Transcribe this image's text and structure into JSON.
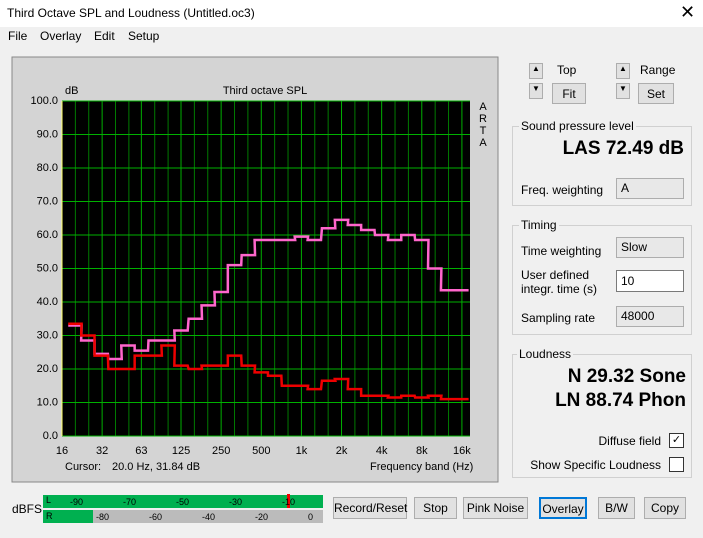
{
  "window": {
    "title": "Third Octave SPL and Loudness (Untitled.oc3)",
    "menu": [
      "File",
      "Overlay",
      "Edit",
      "Setup"
    ]
  },
  "chart_data": {
    "type": "line",
    "title": "Third octave SPL",
    "y_label": "dB",
    "x_label": "Frequency band (Hz)",
    "side_label": "ARTA",
    "cursor_label": "Cursor:",
    "cursor_value": "20.0 Hz, 31.84 dB",
    "log_x": true,
    "grid": true,
    "step": true,
    "x": [
      20,
      25,
      31.5,
      40,
      50,
      63,
      80,
      100,
      125,
      160,
      200,
      250,
      315,
      400,
      500,
      630,
      800,
      1000,
      1250,
      1600,
      2000,
      2500,
      3150,
      4000,
      5000,
      6300,
      8000,
      10000,
      12500,
      16000
    ],
    "series": [
      {
        "color": "#ff66cc",
        "values": [
          33,
          28.5,
          24.5,
          23,
          27,
          25.5,
          28.5,
          28.5,
          31.5,
          35,
          39,
          43,
          51,
          54,
          58.5,
          58.5,
          58.5,
          59.5,
          58.5,
          62,
          64.5,
          63,
          61.5,
          60,
          58.5,
          60,
          58.5,
          50,
          43.5,
          43.5
        ]
      },
      {
        "color": "#ee0000",
        "values": [
          33.5,
          30,
          24,
          20,
          20,
          24,
          24,
          27,
          21,
          20,
          21,
          21,
          24,
          21,
          19,
          18,
          15,
          15,
          14,
          16.5,
          17,
          14,
          12,
          12,
          11.5,
          12,
          11.5,
          12,
          11,
          11
        ]
      }
    ],
    "xlim": [
      16,
      18400
    ],
    "ylim": [
      0,
      100
    ],
    "xticks": [
      16,
      32,
      63,
      125,
      250,
      500,
      {
        "value": 1000,
        "label": "1k"
      },
      {
        "value": 2000,
        "label": "2k"
      },
      {
        "value": 4000,
        "label": "4k"
      },
      {
        "value": 8000,
        "label": "8k"
      },
      {
        "value": 16000,
        "label": "16k"
      }
    ],
    "yticks": [
      {
        "value": 0,
        "label": "0.0"
      },
      {
        "value": 10,
        "label": "10.0"
      },
      {
        "value": 20,
        "label": "20.0"
      },
      {
        "value": 30,
        "label": "30.0"
      },
      {
        "value": 40,
        "label": "40.0"
      },
      {
        "value": 50,
        "label": "50.0"
      },
      {
        "value": 60,
        "label": "60.0"
      },
      {
        "value": 70,
        "label": "70.0"
      },
      {
        "value": 80,
        "label": "80.0"
      },
      {
        "value": 90,
        "label": "90.0"
      },
      {
        "value": 100,
        "label": "100.0"
      }
    ]
  },
  "controls": {
    "top": "Top",
    "fit": "Fit",
    "range": "Range",
    "set": "Set",
    "spl": {
      "title": "Sound pressure level",
      "reading": "LAS 72.49 dB",
      "weighting_label": "Freq. weighting",
      "weighting": "A"
    },
    "timing": {
      "title": "Timing",
      "time_weighting_label": "Time weighting",
      "time_weighting": "Slow",
      "integr_label": "User defined integr. time (s)",
      "integr": "10",
      "rate_label": "Sampling rate",
      "rate": "48000"
    },
    "loudness": {
      "title": "Loudness",
      "n": "N 29.32 Sone",
      "ln": "LN 88.74 Phon",
      "diffuse": "Diffuse field",
      "specific": "Show Specific Loudness"
    }
  },
  "meter": {
    "label": "dBFS",
    "left": "L",
    "right": "R",
    "top_scale": [
      -90,
      -70,
      -50,
      -30,
      -10
    ],
    "bottom_scale": [
      -80,
      -60,
      -40,
      -20,
      0
    ]
  },
  "buttons": [
    "Record/Reset",
    "Stop",
    "Pink Noise",
    "Overlay",
    "B/W",
    "Copy"
  ]
}
